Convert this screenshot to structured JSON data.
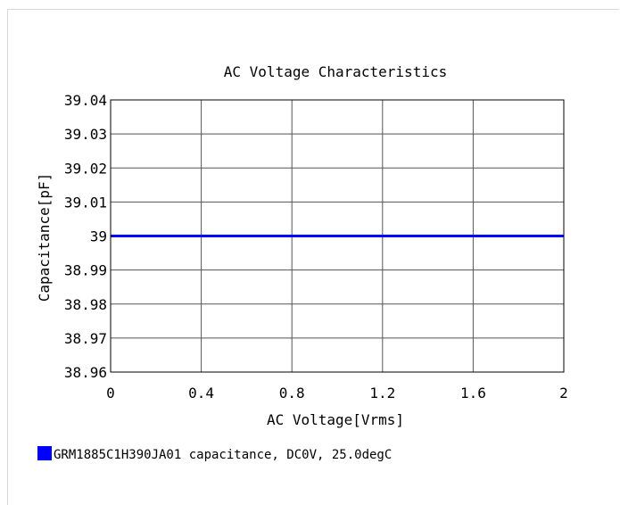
{
  "chart_data": {
    "type": "line",
    "title": "AC Voltage Characteristics",
    "xlabel": "AC Voltage[Vrms]",
    "ylabel": "Capacitance[pF]",
    "xlim": [
      0,
      2
    ],
    "ylim": [
      38.96,
      39.04
    ],
    "x_ticks": [
      "0",
      "0.4",
      "0.8",
      "1.2",
      "1.6",
      "2"
    ],
    "y_ticks": [
      "39.04",
      "39.03",
      "39.02",
      "39.01",
      "39",
      "38.99",
      "38.98",
      "38.97",
      "38.96"
    ],
    "grid": true,
    "legend_position": "bottom-left",
    "series": [
      {
        "name": "GRM1885C1H390JA01 capacitance, DC0V, 25.0degC",
        "color": "#0000ff",
        "x": [
          0,
          0.4,
          0.8,
          1.2,
          1.6,
          2
        ],
        "y": [
          39,
          39,
          39,
          39,
          39,
          39
        ]
      }
    ]
  }
}
